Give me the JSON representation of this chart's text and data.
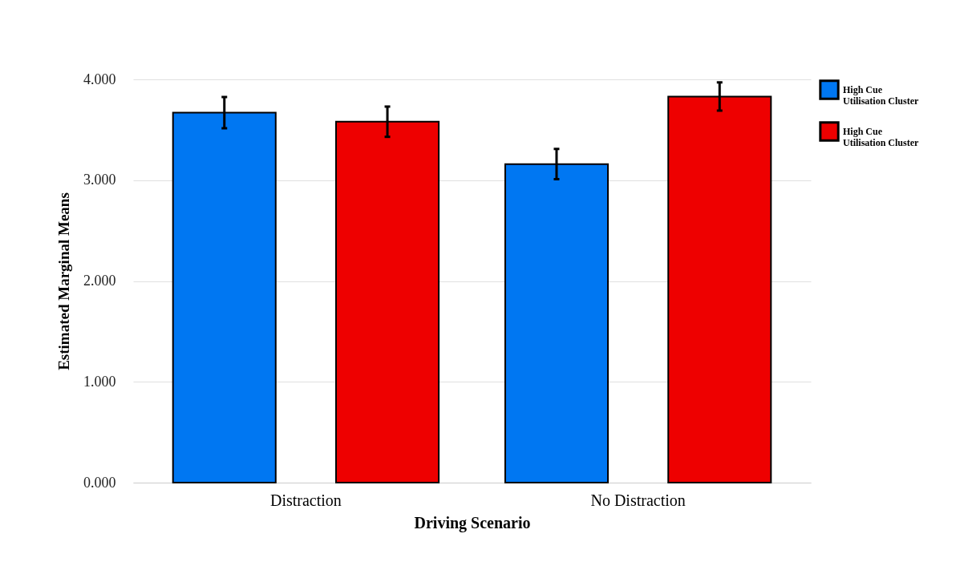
{
  "chart_data": {
    "type": "bar",
    "xlabel": "Driving Scenario",
    "ylabel": "Estimated Marginal Means",
    "categories": [
      "Distraction",
      "No Distraction"
    ],
    "series": [
      {
        "name": "High Cue Utilisation Cluster",
        "color": "#0077f2",
        "values": [
          3.67,
          3.16
        ],
        "errors": [
          0.155,
          0.15
        ]
      },
      {
        "name": "High Cue Utilisation Cluster",
        "color": "#ee0000",
        "values": [
          3.58,
          3.83
        ],
        "errors": [
          0.15,
          0.14
        ]
      }
    ],
    "ylim": [
      0,
      4
    ],
    "yticks": [
      {
        "value": 0,
        "label": "0.000"
      },
      {
        "value": 1,
        "label": "1.000"
      },
      {
        "value": 2,
        "label": "2.000"
      },
      {
        "value": 3,
        "label": "3.000"
      },
      {
        "value": 4,
        "label": "4.000"
      }
    ],
    "grid": "y",
    "legend": "top right"
  }
}
